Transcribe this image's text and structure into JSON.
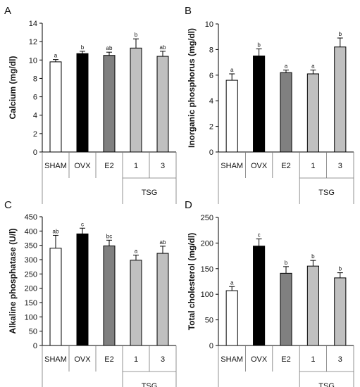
{
  "chart_data": [
    {
      "type": "bar",
      "panel_label": "A",
      "ylabel": "Calcium (mg/dl)",
      "categories": [
        "SHAM",
        "OVX",
        "E2",
        "1",
        "3"
      ],
      "group_label": "TSG",
      "values": [
        9.8,
        10.7,
        10.5,
        11.3,
        10.4
      ],
      "errors": [
        0.25,
        0.25,
        0.35,
        1.0,
        0.55
      ],
      "significance": [
        "a",
        "b",
        "ab",
        "b",
        "ab"
      ],
      "bar_colors": [
        "#ffffff",
        "#000000",
        "#808080",
        "#c0c0c0",
        "#c0c0c0"
      ],
      "ylim": [
        0,
        14
      ],
      "yticks": [
        0,
        2,
        4,
        6,
        8,
        10,
        12,
        14
      ],
      "grid": false
    },
    {
      "type": "bar",
      "panel_label": "B",
      "ylabel": "Inorganic phosphorus (mg/dl)",
      "categories": [
        "SHAM",
        "OVX",
        "E2",
        "1",
        "3"
      ],
      "group_label": "TSG",
      "values": [
        5.6,
        7.5,
        6.2,
        6.1,
        8.2
      ],
      "errors": [
        0.5,
        0.55,
        0.2,
        0.3,
        0.7
      ],
      "significance": [
        "a",
        "b",
        "a",
        "a",
        "b"
      ],
      "bar_colors": [
        "#ffffff",
        "#000000",
        "#808080",
        "#c0c0c0",
        "#c0c0c0"
      ],
      "ylim": [
        0,
        10
      ],
      "yticks": [
        0,
        2,
        4,
        6,
        8,
        10
      ],
      "grid": false
    },
    {
      "type": "bar",
      "panel_label": "C",
      "ylabel": "Alkaline phosphatase (U/l)",
      "categories": [
        "SHAM",
        "OVX",
        "E2",
        "1",
        "3"
      ],
      "group_label": "TSG",
      "values": [
        340,
        390,
        348,
        298,
        322
      ],
      "errors": [
        45,
        20,
        20,
        18,
        25
      ],
      "significance": [
        "ab",
        "c",
        "bc",
        "a",
        "ab"
      ],
      "bar_colors": [
        "#ffffff",
        "#000000",
        "#808080",
        "#c0c0c0",
        "#c0c0c0"
      ],
      "ylim": [
        0,
        450
      ],
      "yticks": [
        0,
        50,
        100,
        150,
        200,
        250,
        300,
        350,
        400,
        450
      ],
      "grid": false
    },
    {
      "type": "bar",
      "panel_label": "D",
      "ylabel": "Total cholesterol (mg/dl)",
      "categories": [
        "SHAM",
        "OVX",
        "E2",
        "1",
        "3"
      ],
      "group_label": "TSG",
      "values": [
        107,
        194,
        141,
        155,
        132
      ],
      "errors": [
        8,
        14,
        13,
        11,
        10
      ],
      "significance": [
        "a",
        "c",
        "b",
        "b",
        "b"
      ],
      "bar_colors": [
        "#ffffff",
        "#000000",
        "#808080",
        "#c0c0c0",
        "#c0c0c0"
      ],
      "ylim": [
        0,
        250
      ],
      "yticks": [
        0,
        50,
        100,
        150,
        200,
        250
      ],
      "grid": false
    }
  ]
}
